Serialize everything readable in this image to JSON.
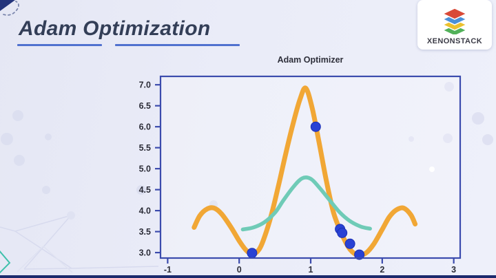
{
  "slide": {
    "title": "Adam Optimization"
  },
  "logo": {
    "text": "XENONSTACK",
    "icon": "layers-stack-icon",
    "layer_colors": [
      "#d94a38",
      "#4a90d9",
      "#ecc12f",
      "#52b159"
    ]
  },
  "colors": {
    "accent_underline": "#5071cf",
    "axis": "#3b4bad",
    "loss_curve": "#f1a735",
    "smoothed_curve": "#6fcbb7",
    "step_dots": "#2942d4",
    "bottom_bar": "#1c2a6d"
  },
  "chart_data": {
    "type": "line",
    "title": "Adam Optimizer",
    "xlabel": "",
    "ylabel": "",
    "xlim": [
      -1.1,
      3.09
    ],
    "ylim": [
      2.87,
      7.2
    ],
    "x_ticks": [
      -1,
      0,
      1,
      2,
      3
    ],
    "y_ticks": [
      3.0,
      3.5,
      4.0,
      4.5,
      5.0,
      5.5,
      6.0,
      6.5,
      7.0
    ],
    "grid": false,
    "legend": "none",
    "series": [
      {
        "name": "loss-curve",
        "color": "#f1a735",
        "width": 7,
        "points": [
          [
            -0.63,
            3.6
          ],
          [
            -0.55,
            3.88
          ],
          [
            -0.45,
            4.04
          ],
          [
            -0.35,
            4.06
          ],
          [
            -0.25,
            3.93
          ],
          [
            -0.12,
            3.62
          ],
          [
            0.0,
            3.28
          ],
          [
            0.1,
            3.05
          ],
          [
            0.19,
            2.96
          ],
          [
            0.28,
            3.08
          ],
          [
            0.35,
            3.35
          ],
          [
            0.45,
            3.9
          ],
          [
            0.55,
            4.6
          ],
          [
            0.65,
            5.35
          ],
          [
            0.75,
            6.05
          ],
          [
            0.85,
            6.65
          ],
          [
            0.93,
            6.92
          ],
          [
            1.02,
            6.45
          ],
          [
            1.12,
            5.6
          ],
          [
            1.22,
            4.7
          ],
          [
            1.32,
            3.95
          ],
          [
            1.42,
            3.5
          ],
          [
            1.52,
            3.15
          ],
          [
            1.6,
            2.99
          ],
          [
            1.68,
            2.93
          ],
          [
            1.78,
            3.0
          ],
          [
            1.88,
            3.2
          ],
          [
            2.0,
            3.55
          ],
          [
            2.1,
            3.85
          ],
          [
            2.2,
            4.02
          ],
          [
            2.3,
            4.06
          ],
          [
            2.4,
            3.9
          ],
          [
            2.46,
            3.68
          ]
        ]
      },
      {
        "name": "smoothed-curve",
        "color": "#6fcbb7",
        "width": 5.5,
        "points": [
          [
            0.05,
            3.55
          ],
          [
            0.2,
            3.6
          ],
          [
            0.35,
            3.72
          ],
          [
            0.5,
            3.95
          ],
          [
            0.62,
            4.25
          ],
          [
            0.75,
            4.55
          ],
          [
            0.88,
            4.77
          ],
          [
            1.0,
            4.76
          ],
          [
            1.12,
            4.55
          ],
          [
            1.25,
            4.28
          ],
          [
            1.4,
            3.97
          ],
          [
            1.55,
            3.75
          ],
          [
            1.7,
            3.62
          ],
          [
            1.83,
            3.57
          ]
        ]
      }
    ],
    "scatter": {
      "name": "optimizer-steps",
      "color": "#2942d4",
      "stroke": "#1c30b5",
      "radius": 7,
      "points": [
        [
          0.18,
          2.99
        ],
        [
          1.07,
          6.0
        ],
        [
          1.41,
          3.56
        ],
        [
          1.44,
          3.47
        ],
        [
          1.55,
          3.21
        ],
        [
          1.68,
          2.95
        ]
      ]
    }
  }
}
